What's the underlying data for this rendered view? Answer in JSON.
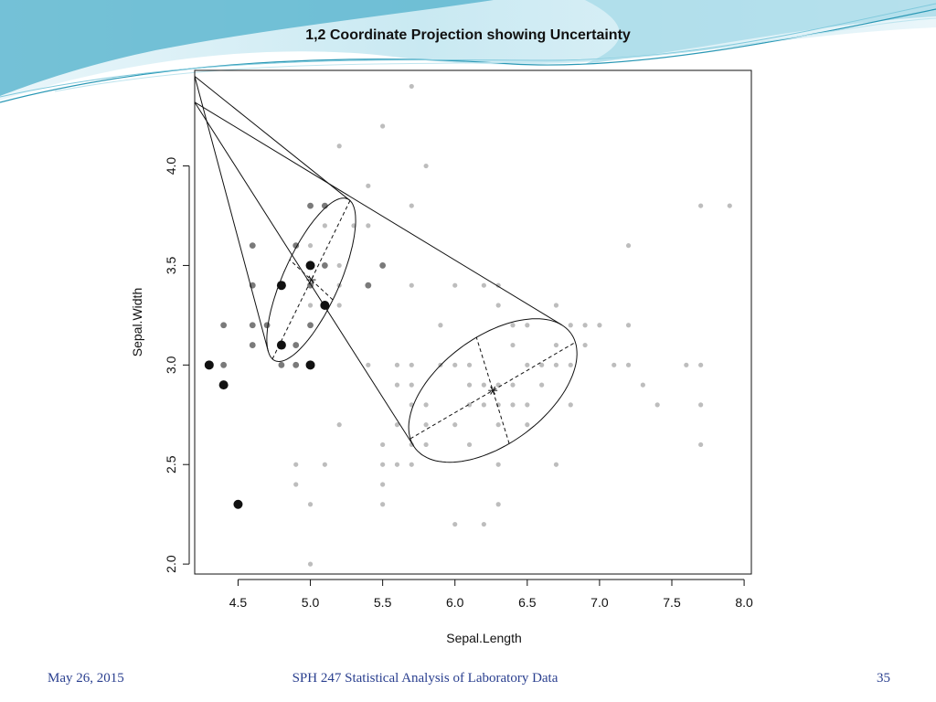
{
  "slide": {
    "footer_date": "May 26, 2015",
    "footer_course": "SPH 247 Statistical Analysis of Laboratory Data",
    "page_number": "35"
  },
  "colors": {
    "banner_light": "#dff1f7",
    "banner_mid": "#7fc9dc",
    "banner_dark": "#2a98b5",
    "footer_text": "#2a3f8f",
    "point_grey": "#bdbdbd",
    "point_dark": "#111111"
  },
  "chart_data": {
    "type": "scatter",
    "title": "1,2 Coordinate Projection showing Uncertainty",
    "xlabel": "Sepal.Length",
    "ylabel": "Sepal.Width",
    "xlim": [
      4.2,
      8.05
    ],
    "ylim": [
      1.95,
      4.48
    ],
    "xticks": [
      "4.5",
      "5.0",
      "5.5",
      "6.0",
      "6.5",
      "7.0",
      "7.5",
      "8.0"
    ],
    "yticks": [
      "2.0",
      "2.5",
      "3.0",
      "3.5",
      "4.0"
    ],
    "grid": false,
    "series": [
      {
        "uncertainty": "low",
        "points": [
          [
            5.7,
            4.4
          ],
          [
            5.5,
            4.2
          ],
          [
            5.2,
            4.1
          ],
          [
            5.8,
            4.0
          ],
          [
            5.4,
            3.9
          ],
          [
            5.7,
            3.8
          ],
          [
            7.7,
            3.8
          ],
          [
            7.9,
            3.8
          ],
          [
            5.1,
            3.8
          ],
          [
            5.3,
            3.7
          ],
          [
            5.4,
            3.7
          ],
          [
            5.1,
            3.7
          ],
          [
            7.2,
            3.6
          ],
          [
            5.0,
            3.6
          ],
          [
            4.9,
            3.6
          ],
          [
            5.1,
            3.5
          ],
          [
            5.2,
            3.5
          ],
          [
            5.0,
            3.5
          ],
          [
            5.4,
            3.4
          ],
          [
            5.7,
            3.4
          ],
          [
            6.0,
            3.4
          ],
          [
            6.2,
            3.4
          ],
          [
            6.3,
            3.4
          ],
          [
            5.2,
            3.4
          ],
          [
            5.0,
            3.3
          ],
          [
            6.3,
            3.3
          ],
          [
            6.7,
            3.3
          ],
          [
            5.2,
            3.3
          ],
          [
            5.9,
            3.2
          ],
          [
            6.4,
            3.2
          ],
          [
            6.5,
            3.2
          ],
          [
            6.8,
            3.2
          ],
          [
            6.9,
            3.2
          ],
          [
            7.0,
            3.2
          ],
          [
            7.2,
            3.2
          ],
          [
            4.9,
            3.1
          ],
          [
            5.0,
            3.2
          ],
          [
            6.4,
            3.1
          ],
          [
            6.7,
            3.1
          ],
          [
            6.9,
            3.1
          ],
          [
            5.4,
            3.0
          ],
          [
            5.6,
            3.0
          ],
          [
            5.7,
            3.0
          ],
          [
            5.9,
            3.0
          ],
          [
            6.0,
            3.0
          ],
          [
            6.1,
            3.0
          ],
          [
            6.5,
            3.0
          ],
          [
            6.6,
            3.0
          ],
          [
            6.7,
            3.0
          ],
          [
            6.8,
            3.0
          ],
          [
            7.1,
            3.0
          ],
          [
            7.2,
            3.0
          ],
          [
            7.6,
            3.0
          ],
          [
            7.7,
            3.0
          ],
          [
            5.6,
            2.9
          ],
          [
            5.7,
            2.9
          ],
          [
            6.1,
            2.9
          ],
          [
            6.2,
            2.9
          ],
          [
            6.3,
            2.9
          ],
          [
            6.4,
            2.9
          ],
          [
            6.6,
            2.9
          ],
          [
            7.3,
            2.9
          ],
          [
            5.7,
            2.8
          ],
          [
            5.8,
            2.8
          ],
          [
            6.1,
            2.8
          ],
          [
            6.2,
            2.8
          ],
          [
            6.3,
            2.8
          ],
          [
            6.4,
            2.8
          ],
          [
            6.5,
            2.8
          ],
          [
            6.8,
            2.8
          ],
          [
            7.4,
            2.8
          ],
          [
            7.7,
            2.8
          ],
          [
            5.2,
            2.7
          ],
          [
            5.6,
            2.7
          ],
          [
            5.8,
            2.7
          ],
          [
            6.0,
            2.7
          ],
          [
            6.3,
            2.7
          ],
          [
            6.5,
            2.7
          ],
          [
            5.5,
            2.6
          ],
          [
            5.7,
            2.6
          ],
          [
            5.8,
            2.6
          ],
          [
            6.1,
            2.6
          ],
          [
            7.7,
            2.6
          ],
          [
            4.9,
            2.5
          ],
          [
            5.1,
            2.5
          ],
          [
            5.5,
            2.5
          ],
          [
            5.6,
            2.5
          ],
          [
            5.7,
            2.5
          ],
          [
            6.3,
            2.5
          ],
          [
            6.7,
            2.5
          ],
          [
            4.9,
            2.4
          ],
          [
            5.5,
            2.4
          ],
          [
            5.0,
            2.3
          ],
          [
            5.5,
            2.3
          ],
          [
            6.3,
            2.3
          ],
          [
            6.0,
            2.2
          ],
          [
            6.2,
            2.2
          ],
          [
            5.0,
            2.0
          ]
        ]
      },
      {
        "uncertainty": "medium",
        "points": [
          [
            5.0,
            3.8
          ],
          [
            5.1,
            3.8
          ],
          [
            4.6,
            3.6
          ],
          [
            4.9,
            3.6
          ],
          [
            5.0,
            3.4
          ],
          [
            4.6,
            3.4
          ],
          [
            5.0,
            3.5
          ],
          [
            5.5,
            3.5
          ],
          [
            5.4,
            3.4
          ],
          [
            5.1,
            3.5
          ],
          [
            4.9,
            3.1
          ],
          [
            4.8,
            3.1
          ],
          [
            4.4,
            3.2
          ],
          [
            4.6,
            3.2
          ],
          [
            4.7,
            3.2
          ],
          [
            4.8,
            3.0
          ],
          [
            4.9,
            3.0
          ],
          [
            4.4,
            3.0
          ],
          [
            4.6,
            3.1
          ],
          [
            5.0,
            3.2
          ]
        ]
      },
      {
        "uncertainty": "high",
        "points": [
          [
            5.0,
            3.5
          ],
          [
            4.8,
            3.4
          ],
          [
            5.1,
            3.3
          ],
          [
            4.8,
            3.1
          ],
          [
            4.3,
            3.0
          ],
          [
            5.0,
            3.0
          ],
          [
            4.4,
            2.9
          ],
          [
            4.5,
            2.3
          ]
        ]
      }
    ],
    "components": [
      {
        "mean": [
          5.006,
          3.428
        ],
        "semi_axes": [
          0.48,
          0.18
        ],
        "angle_deg": 56,
        "projection_origin": [
          4.2,
          4.45
        ]
      },
      {
        "mean": [
          6.262,
          2.872
        ],
        "semi_axes": [
          0.62,
          0.29
        ],
        "angle_deg": 23,
        "projection_origin": [
          4.2,
          4.32
        ]
      }
    ]
  }
}
